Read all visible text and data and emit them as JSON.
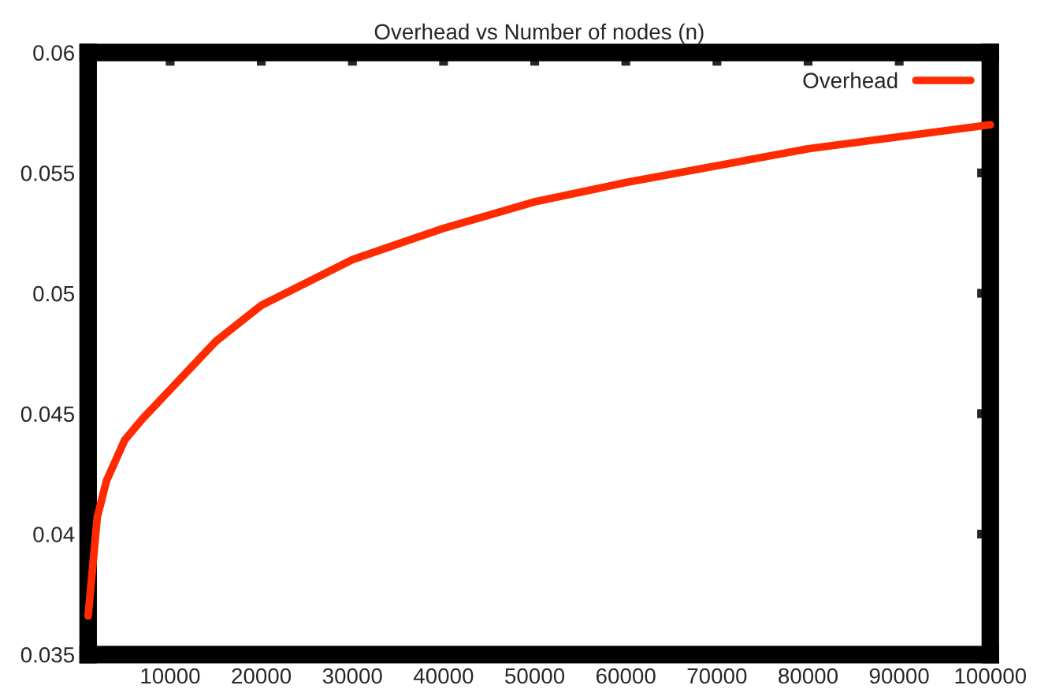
{
  "chart_data": {
    "type": "line",
    "title": "Overhead vs Number of nodes (n)",
    "x": [
      1000,
      2000,
      3000,
      5000,
      7000,
      10000,
      15000,
      20000,
      30000,
      40000,
      50000,
      60000,
      70000,
      80000,
      90000,
      100000
    ],
    "series": [
      {
        "name": "Overhead",
        "color": "#ff2a00",
        "values": [
          0.0366,
          0.0407,
          0.0422,
          0.0439,
          0.0448,
          0.046,
          0.048,
          0.0495,
          0.0514,
          0.0527,
          0.0538,
          0.0546,
          0.0553,
          0.056,
          0.0565,
          0.057
        ]
      }
    ],
    "xlim": [
      1000,
      100000
    ],
    "xticks": [
      10000,
      20000,
      30000,
      40000,
      50000,
      60000,
      70000,
      80000,
      90000,
      100000
    ],
    "ylim": [
      0.035,
      0.06
    ],
    "yticks": [
      0.035,
      0.04,
      0.045,
      0.05,
      0.055,
      0.06
    ],
    "grid": false,
    "legend": "top right",
    "marker": "none",
    "line_style": "solid"
  }
}
